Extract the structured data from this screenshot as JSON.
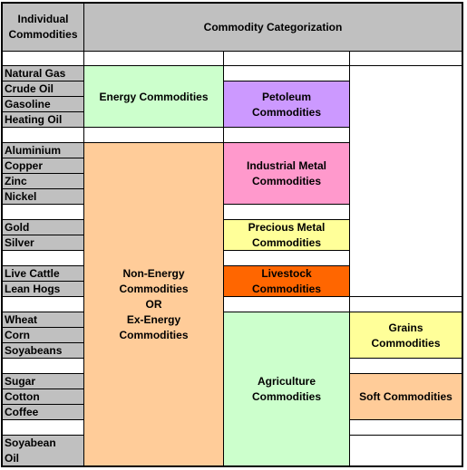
{
  "header": {
    "left": "Individual Commodities",
    "right": "Commodity Categorization"
  },
  "commodities": [
    "Natural Gas",
    "Crude Oil",
    "Gasoline",
    "Heating Oil",
    "Aluminium",
    "Copper",
    "Zinc",
    "Nickel",
    "Gold",
    "Silver",
    "Live Cattle",
    "Lean Hogs",
    "Wheat",
    "Corn",
    "Soyabeans",
    "Sugar",
    "Cotton",
    "Coffee",
    "Soyabean Oil"
  ],
  "categories": {
    "energy": "Energy Commodities",
    "non_energy": [
      "Non-Energy",
      "Commodities",
      "OR",
      "Ex-Energy",
      "Commodities"
    ],
    "petroleum": "Petoleum Commodities",
    "industrial_metal": "Industrial Metal Commodities",
    "precious_metal": "Precious Metal Commodities",
    "livestock": "Livestock Commodities",
    "agriculture": "Agriculture Commodities",
    "grains": "Grains Commodities",
    "soft": "Soft Commodities"
  },
  "colors": {
    "header": "#c0c0c0",
    "energy": "#ccffcc",
    "non_energy": "#ffcc99",
    "petroleum": "#cc99ff",
    "industrial_metal": "#ff99cc",
    "precious_metal": "#ffff99",
    "livestock": "#ff6600",
    "agriculture": "#ccffcc",
    "grains": "#ffff99",
    "soft": "#ffcc99"
  }
}
